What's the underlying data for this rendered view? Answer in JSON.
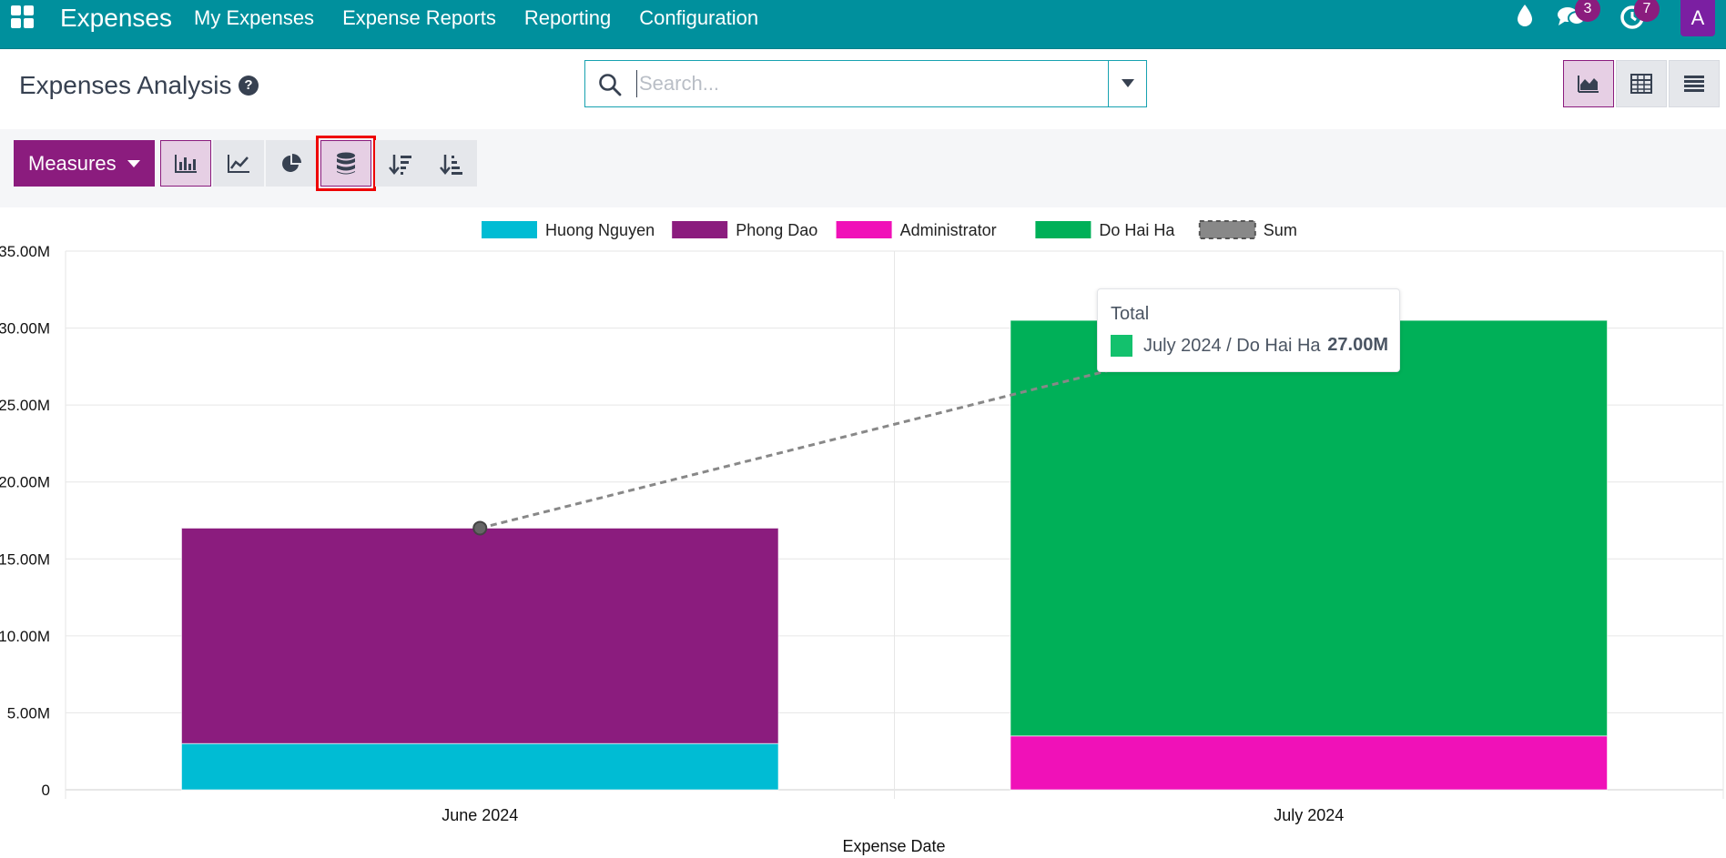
{
  "navbar": {
    "brand": "Expenses",
    "menu": [
      "My Expenses",
      "Expense Reports",
      "Reporting",
      "Configuration"
    ],
    "messages_badge": "3",
    "activities_badge": "7",
    "avatar_initial": "A",
    "icons": [
      "apps-grid-icon",
      "water-drop-icon",
      "chat-icon",
      "clock-icon"
    ]
  },
  "control_panel": {
    "title": "Expenses Analysis",
    "search_placeholder": "Search...",
    "measures_label": "Measures"
  },
  "chart_data": {
    "type": "bar",
    "stacked": true,
    "categories": [
      "June 2024",
      "July 2024"
    ],
    "series": [
      {
        "name": "Huong Nguyen",
        "color": "#00bcd4",
        "values": [
          3000000,
          0
        ]
      },
      {
        "name": "Phong Dao",
        "color": "#8b1c7e",
        "values": [
          14000000,
          0
        ]
      },
      {
        "name": "Administrator",
        "color": "#f011b8",
        "values": [
          0,
          3500000
        ]
      },
      {
        "name": "Do Hai Ha",
        "color": "#00b058",
        "values": [
          0,
          27000000
        ]
      },
      {
        "name": "Sum",
        "color": "#888888",
        "values": [
          17000000,
          30500000
        ],
        "style": "dashed-line"
      }
    ],
    "xlabel": "Expense Date",
    "ylabel": "",
    "ylim": [
      0,
      35000000
    ],
    "yticks": [
      "0",
      "5.00M",
      "10.00M",
      "15.00M",
      "20.00M",
      "25.00M",
      "30.00M",
      "35.00M"
    ],
    "legend_position": "top",
    "grid": true
  },
  "tooltip": {
    "title": "Total",
    "label": "July 2024 / Do Hai Ha",
    "value": "27.00M",
    "color": "#13c16d"
  }
}
